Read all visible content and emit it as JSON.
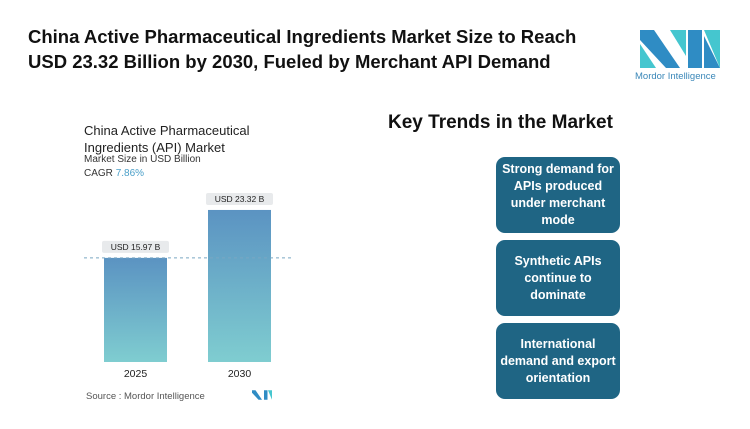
{
  "title": "China Active Pharmaceutical Ingredients Market Size to Reach USD 23.32 Billion by 2030, Fueled by Merchant API Demand",
  "logo": {
    "text": "Mordor Intelligence"
  },
  "chart_data": {
    "type": "bar",
    "title": "China Active Pharmaceutical Ingredients (API) Market",
    "subtitle": "Market Size in USD Billion",
    "cagr_label": "CAGR",
    "cagr_value": "7.86%",
    "categories": [
      "2025",
      "2030"
    ],
    "values": [
      15.97,
      23.32
    ],
    "data_labels": [
      "USD 15.97 B",
      "USD 23.32 B"
    ],
    "ylim": [
      0,
      25
    ],
    "colors": {
      "bar_top": "#5b93c2",
      "bar_bottom": "#7fcdd0"
    },
    "source": "Source :  Mordor Intelligence"
  },
  "trends": {
    "heading": "Key Trends in the Market",
    "items": [
      "Strong demand for APIs produced under merchant mode",
      "Synthetic APIs continue to dominate",
      "International demand and export orientation"
    ]
  }
}
